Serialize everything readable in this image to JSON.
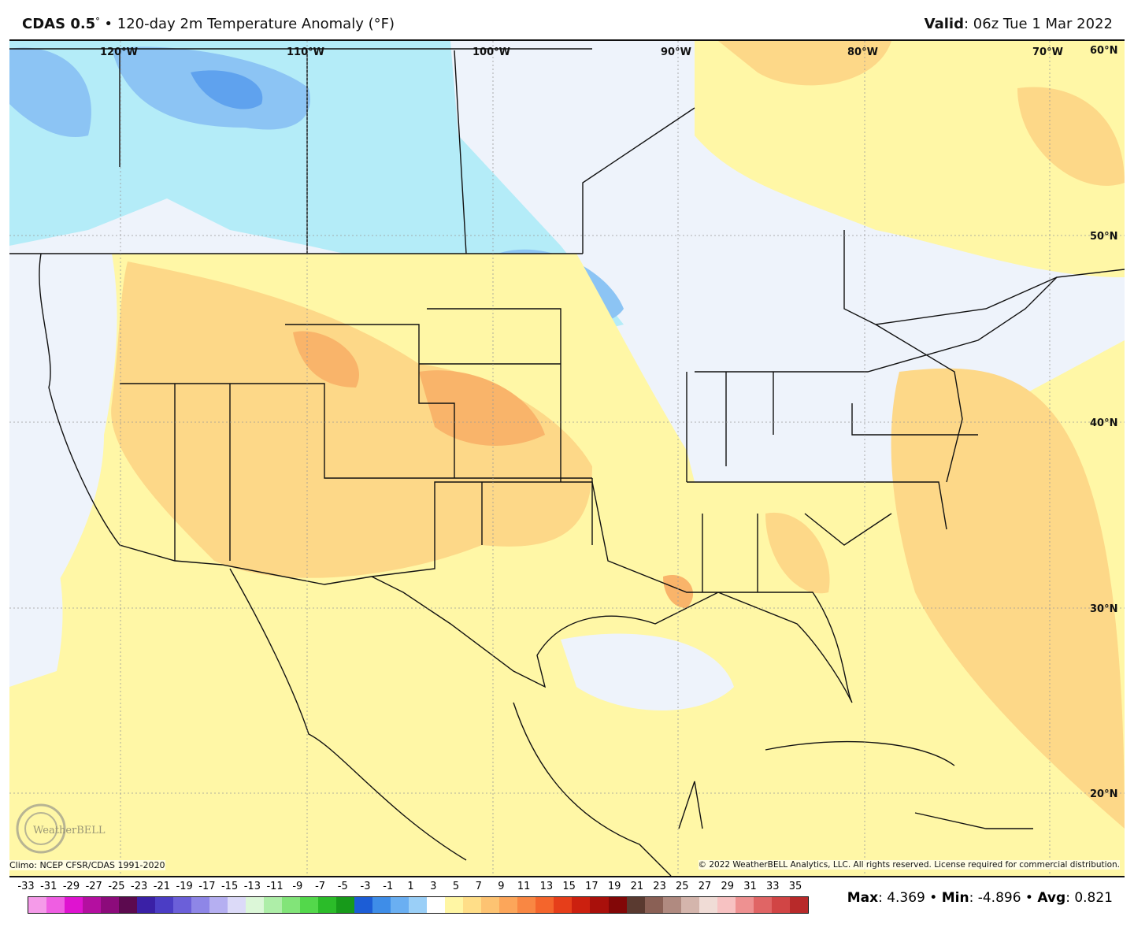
{
  "header": {
    "model": "CDAS 0.5",
    "degree": "°",
    "sep": " • ",
    "product": "120-day 2m Temperature Anomaly (°F)",
    "valid_label": "Valid",
    "valid_value": ": 06z Tue 1 Mar 2022"
  },
  "grid": {
    "lon_labels": [
      "120°W",
      "110°W",
      "100°W",
      "90°W",
      "80°W",
      "70°W"
    ],
    "lat_labels": [
      "60°N",
      "50°N",
      "40°N",
      "30°N",
      "20°N"
    ]
  },
  "logo": "WeatherBELL",
  "footer": {
    "climo": "Climo: NCEP CFSR/CDAS 1991-2020",
    "copyright": "© 2022 WeatherBELL Analytics, LLC. All rights reserved. License required for commercial distribution."
  },
  "colorbar": {
    "labels": [
      "-33",
      "-31",
      "-29",
      "-27",
      "-25",
      "-23",
      "-21",
      "-19",
      "-17",
      "-15",
      "-13",
      "-11",
      "-9",
      "-7",
      "-5",
      "-3",
      "-1",
      "1",
      "3",
      "5",
      "7",
      "9",
      "11",
      "13",
      "15",
      "17",
      "19",
      "21",
      "23",
      "25",
      "27",
      "29",
      "31",
      "33",
      "35"
    ],
    "colors": [
      "#f59be9",
      "#ef5ee2",
      "#df13d0",
      "#b40fa0",
      "#8c0b7b",
      "#5c0a4f",
      "#3a20a6",
      "#4b3dc5",
      "#6b5fd9",
      "#8e86e7",
      "#b5aff1",
      "#dcdaf8",
      "#dcf7d8",
      "#aeeea8",
      "#82e479",
      "#53d84b",
      "#2bbc29",
      "#179a1a",
      "#1c5dd6",
      "#3e8de8",
      "#6aaff2",
      "#9acff7",
      "#ffffff",
      "#fff6a4",
      "#ffde88",
      "#fdc372",
      "#fca65a",
      "#f98743",
      "#f4652c",
      "#e63e1a",
      "#cc200f",
      "#a9100b",
      "#820707",
      "#5a3a30",
      "#8a6055",
      "#b08a80",
      "#d4b5ac",
      "#f0dcd6",
      "#f7c2c2",
      "#ee9191",
      "#e06565",
      "#d14545",
      "#b82a2a"
    ]
  },
  "stats": {
    "max_label": "Max",
    "max": ": 4.369",
    "min_label": "Min",
    "min": ": -4.896",
    "avg_label": "Avg",
    "avg": ": 0.821",
    "sep": " • "
  },
  "colors": {
    "neutral": "#eef3fb",
    "yellow": "#fff7a6",
    "light_orange": "#fdd888",
    "orange": "#f9b46a",
    "light_blue": "#b4ecf8",
    "blue": "#8cc4f4",
    "deep_blue": "#5fa2ee"
  }
}
